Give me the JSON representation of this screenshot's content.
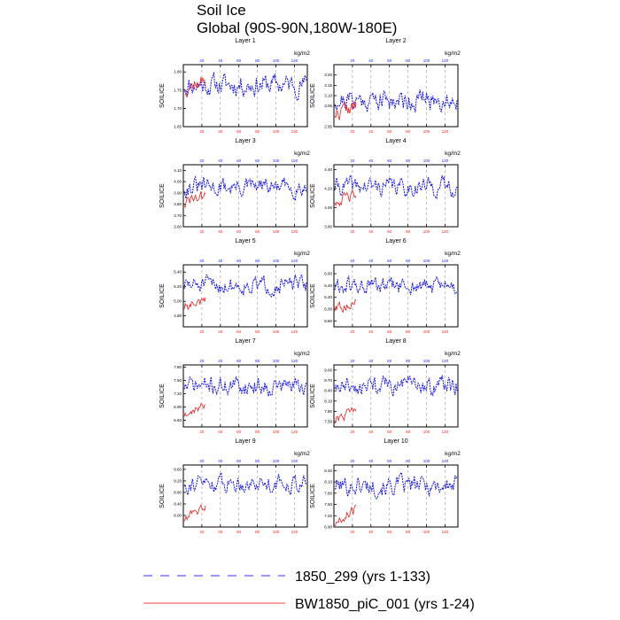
{
  "header": {
    "title": "Soil Ice",
    "subtitle": "Global (90S-90N,180W-180E)"
  },
  "legend": {
    "items": [
      {
        "label": "1850_299 (yrs 1-133)",
        "color": "#3030ff",
        "style": "dashed"
      },
      {
        "label": "BW1850_piC_001 (yrs 1-24)",
        "color": "#ff4040",
        "style": "solid"
      }
    ]
  },
  "colors": {
    "blue_series": "#1010ee",
    "red_series": "#ee2020",
    "blue_axis": "#2020ff",
    "red_axis": "#ff2020"
  },
  "chart_data": [
    {
      "type": "line",
      "title": "Layer 1",
      "ylabel": "SOILICE",
      "units": "kg/m2",
      "ylim": [
        1.65,
        1.82
      ],
      "yticks": [
        1.65,
        1.7,
        1.75,
        1.8
      ],
      "ytick_labels": [
        "1.65",
        "1.70",
        "1.75",
        "1.80"
      ],
      "top_xticks": [
        20,
        40,
        60,
        80,
        100,
        120
      ],
      "bottom_xticks": [
        20,
        40,
        60,
        80,
        100,
        120
      ],
      "series": [
        {
          "name": "1850_299 (yrs 1-133)",
          "years": [
            1,
            133
          ],
          "seed": 11,
          "amp": 0.04,
          "base": 1.765,
          "trend": 0.0
        },
        {
          "name": "BW1850_piC_001 (yrs 1-24)",
          "years": [
            1,
            24
          ],
          "seed": 12,
          "amp": 0.03,
          "base": 1.765,
          "trend": 0.02
        }
      ]
    },
    {
      "type": "line",
      "title": "Layer 2",
      "ylabel": "SOILICE",
      "units": "kg/m2",
      "ylim": [
        2.95,
        3.25
      ],
      "yticks": [
        2.95,
        3.05,
        3.1,
        3.15,
        3.2
      ],
      "ytick_labels": [
        "2.95",
        "3.05",
        "3.10",
        "3.15",
        "3.20"
      ],
      "top_xticks": [
        20,
        40,
        60,
        80,
        100,
        120
      ],
      "bottom_xticks": [
        20,
        40,
        60,
        80,
        100,
        120
      ],
      "series": [
        {
          "name": "1850_299 (yrs 1-133)",
          "years": [
            1,
            133
          ],
          "seed": 21,
          "amp": 0.07,
          "base": 3.08,
          "trend": 0.0
        },
        {
          "name": "BW1850_piC_001 (yrs 1-24)",
          "years": [
            1,
            24
          ],
          "seed": 22,
          "amp": 0.05,
          "base": 3.03,
          "trend": 0.03
        }
      ]
    },
    {
      "type": "line",
      "title": "Layer 3",
      "ylabel": "SOILICE",
      "units": "kg/m2",
      "ylim": [
        3.6,
        4.15
      ],
      "yticks": [
        3.6,
        3.7,
        3.8,
        3.9,
        4.0,
        4.1
      ],
      "ytick_labels": [
        "3.60",
        "3.70",
        "3.80",
        "3.90",
        "4.00",
        "4.10"
      ],
      "top_xticks": [
        20,
        40,
        60,
        80,
        100,
        120
      ],
      "bottom_xticks": [
        20,
        40,
        60,
        80,
        100,
        120
      ],
      "series": [
        {
          "name": "1850_299 (yrs 1-133)",
          "years": [
            1,
            133
          ],
          "seed": 31,
          "amp": 0.11,
          "base": 3.95,
          "trend": 0.0
        },
        {
          "name": "BW1850_piC_001 (yrs 1-24)",
          "years": [
            1,
            24
          ],
          "seed": 32,
          "amp": 0.08,
          "base": 3.84,
          "trend": 0.05
        }
      ]
    },
    {
      "type": "line",
      "title": "Layer 4",
      "ylabel": "SOILICE",
      "units": "kg/m2",
      "ylim": [
        3.8,
        4.45
      ],
      "yticks": [
        3.8,
        4.0,
        4.2,
        4.4
      ],
      "ytick_labels": [
        "3.80",
        "4.00",
        "4.20",
        "4.40"
      ],
      "top_xticks": [
        20,
        40,
        60,
        80,
        100,
        120
      ],
      "bottom_xticks": [
        20,
        40,
        60,
        80,
        100,
        120
      ],
      "series": [
        {
          "name": "1850_299 (yrs 1-133)",
          "years": [
            1,
            133
          ],
          "seed": 41,
          "amp": 0.13,
          "base": 4.22,
          "trend": 0.0
        },
        {
          "name": "BW1850_piC_001 (yrs 1-24)",
          "years": [
            1,
            24
          ],
          "seed": 42,
          "amp": 0.08,
          "base": 4.1,
          "trend": 0.05
        }
      ]
    },
    {
      "type": "line",
      "title": "Layer 5",
      "ylabel": "SOILICE",
      "units": "kg/m2",
      "ylim": [
        4.65,
        5.5
      ],
      "yticks": [
        4.8,
        5.0,
        5.2,
        5.4
      ],
      "ytick_labels": [
        "4.80",
        "5.00",
        "5.20",
        "5.40"
      ],
      "top_xticks": [
        20,
        40,
        60,
        80,
        100,
        120
      ],
      "bottom_xticks": [
        20,
        40,
        60,
        80,
        100,
        120
      ],
      "series": [
        {
          "name": "1850_299 (yrs 1-133)",
          "years": [
            1,
            133
          ],
          "seed": 51,
          "amp": 0.16,
          "base": 5.22,
          "trend": 0.0
        },
        {
          "name": "BW1850_piC_001 (yrs 1-24)",
          "years": [
            1,
            24
          ],
          "seed": 52,
          "amp": 0.1,
          "base": 4.96,
          "trend": 0.08
        }
      ]
    },
    {
      "type": "line",
      "title": "Layer 6",
      "ylabel": "SOILICE",
      "units": "kg/m2",
      "ylim": [
        5.7,
        6.75
      ],
      "yticks": [
        5.8,
        6.0,
        6.2,
        6.4,
        6.6
      ],
      "ytick_labels": [
        "5.80",
        "6.00",
        "6.20",
        "6.40",
        "6.60"
      ],
      "top_xticks": [
        20,
        40,
        60,
        80,
        100,
        120
      ],
      "bottom_xticks": [
        20,
        40,
        60,
        80,
        100,
        120
      ],
      "series": [
        {
          "name": "1850_299 (yrs 1-133)",
          "years": [
            1,
            133
          ],
          "seed": 61,
          "amp": 0.2,
          "base": 6.38,
          "trend": 0.0
        },
        {
          "name": "BW1850_piC_001 (yrs 1-24)",
          "years": [
            1,
            24
          ],
          "seed": 62,
          "amp": 0.12,
          "base": 6.05,
          "trend": 0.1
        }
      ]
    },
    {
      "type": "line",
      "title": "Layer 7",
      "ylabel": "SOILICE",
      "units": "kg/m2",
      "ylim": [
        6.45,
        7.85
      ],
      "yticks": [
        6.6,
        6.9,
        7.2,
        7.5,
        7.8
      ],
      "ytick_labels": [
        "6.60",
        "6.90",
        "7.20",
        "7.50",
        "7.80"
      ],
      "top_xticks": [
        20,
        40,
        60,
        80,
        100,
        120
      ],
      "bottom_xticks": [
        20,
        40,
        60,
        80,
        100,
        120
      ],
      "series": [
        {
          "name": "1850_299 (yrs 1-133)",
          "years": [
            1,
            133
          ],
          "seed": 71,
          "amp": 0.28,
          "base": 7.38,
          "trend": 0.0
        },
        {
          "name": "BW1850_piC_001 (yrs 1-24)",
          "years": [
            1,
            24
          ],
          "seed": 72,
          "amp": 0.14,
          "base": 6.85,
          "trend": 0.25
        }
      ]
    },
    {
      "type": "line",
      "title": "Layer 8",
      "ylabel": "SOILICE",
      "units": "kg/m2",
      "ylim": [
        7.35,
        9.15
      ],
      "yticks": [
        7.5,
        7.8,
        8.1,
        8.4,
        8.7,
        9.0
      ],
      "ytick_labels": [
        "7.50",
        "7.80",
        "8.10",
        "8.40",
        "8.70",
        "9.00"
      ],
      "top_xticks": [
        20,
        40,
        60,
        80,
        100,
        120
      ],
      "bottom_xticks": [
        20,
        40,
        60,
        80,
        100,
        120
      ],
      "series": [
        {
          "name": "1850_299 (yrs 1-133)",
          "years": [
            1,
            133
          ],
          "seed": 81,
          "amp": 0.35,
          "base": 8.55,
          "trend": 0.0
        },
        {
          "name": "BW1850_piC_001 (yrs 1-24)",
          "years": [
            1,
            24
          ],
          "seed": 82,
          "amp": 0.18,
          "base": 7.7,
          "trend": 0.4
        }
      ]
    },
    {
      "type": "line",
      "title": "Layer 9",
      "ylabel": "SOILICE",
      "units": "kg/m2",
      "ylim": [
        7.6,
        9.75
      ],
      "yticks": [
        8.0,
        8.4,
        8.8,
        9.2,
        9.6
      ],
      "ytick_labels": [
        "8.00",
        "8.40",
        "8.80",
        "9.20",
        "9.60"
      ],
      "top_xticks": [
        20,
        40,
        60,
        80,
        100,
        120
      ],
      "bottom_xticks": [
        20,
        40,
        60,
        80,
        100,
        120
      ],
      "series": [
        {
          "name": "1850_299 (yrs 1-133)",
          "years": [
            1,
            133
          ],
          "seed": 91,
          "amp": 0.4,
          "base": 9.12,
          "trend": 0.0
        },
        {
          "name": "BW1850_piC_001 (yrs 1-24)",
          "years": [
            1,
            24
          ],
          "seed": 92,
          "amp": 0.2,
          "base": 8.1,
          "trend": 0.5
        }
      ]
    },
    {
      "type": "line",
      "title": "Layer 10",
      "ylabel": "SOILICE",
      "units": "kg/m2",
      "ylim": [
        6.9,
        8.55
      ],
      "yticks": [
        6.9,
        7.2,
        7.5,
        7.8,
        8.1,
        8.4
      ],
      "ytick_labels": [
        "6.90",
        "7.20",
        "7.50",
        "7.80",
        "8.10",
        "8.40"
      ],
      "top_xticks": [
        20,
        40,
        60,
        80,
        100,
        120
      ],
      "bottom_xticks": [
        20,
        40,
        60,
        80,
        100,
        120
      ],
      "series": [
        {
          "name": "1850_299 (yrs 1-133)",
          "years": [
            1,
            133
          ],
          "seed": 101,
          "amp": 0.35,
          "base": 8.0,
          "trend": 0.0
        },
        {
          "name": "BW1850_piC_001 (yrs 1-24)",
          "years": [
            1,
            24
          ],
          "seed": 102,
          "amp": 0.18,
          "base": 7.2,
          "trend": 0.45
        }
      ]
    }
  ]
}
